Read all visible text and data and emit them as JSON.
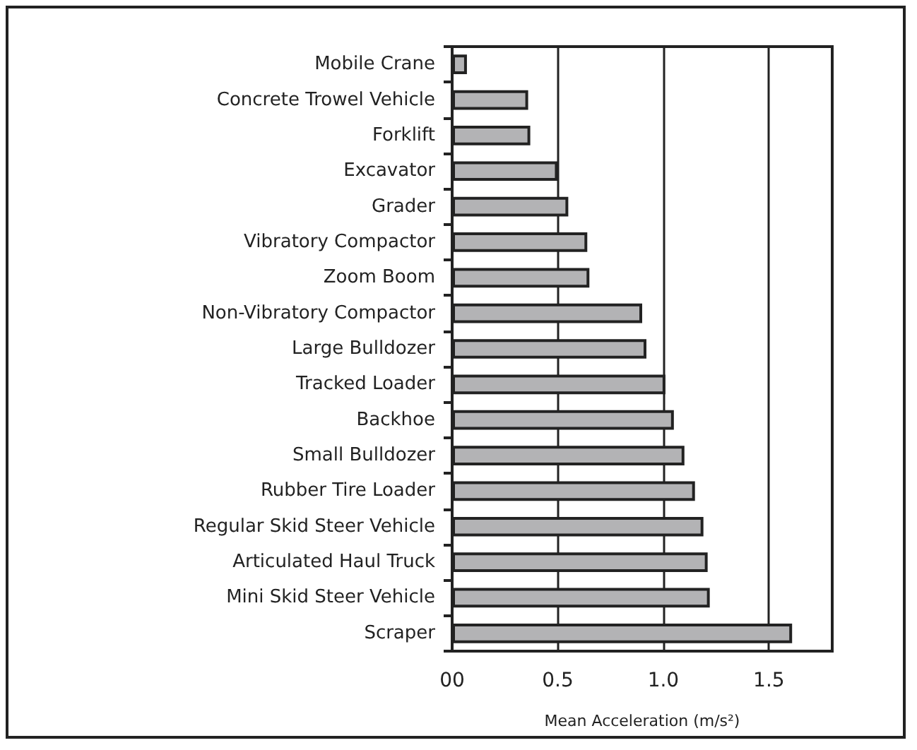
{
  "chart_data": {
    "type": "bar",
    "orientation": "horizontal",
    "xlabel": "Mean Acceleration (m/s²)",
    "categories": [
      "Mobile Crane",
      "Concrete Trowel Vehicle",
      "Forklift",
      "Excavator",
      "Grader",
      "Vibratory Compactor",
      "Zoom Boom",
      "Non-Vibratory Compactor",
      "Large Bulldozer",
      "Tracked Loader",
      "Backhoe",
      "Small Bulldozer",
      "Rubber Tire Loader",
      "Regular Skid Steer Vehicle",
      "Articulated Haul Truck",
      "Mini Skid Steer Vehicle",
      "Scraper"
    ],
    "values": [
      0.07,
      0.36,
      0.37,
      0.5,
      0.55,
      0.64,
      0.65,
      0.9,
      0.92,
      1.01,
      1.05,
      1.1,
      1.15,
      1.19,
      1.21,
      1.22,
      1.61
    ],
    "color": "#b3b3b5",
    "xlim": [
      0,
      1.8
    ],
    "xticks": [
      {
        "value": 0,
        "label": "00"
      },
      0.5,
      {
        "value": 1,
        "label": "1.0"
      },
      1.5
    ],
    "grid": "x"
  }
}
